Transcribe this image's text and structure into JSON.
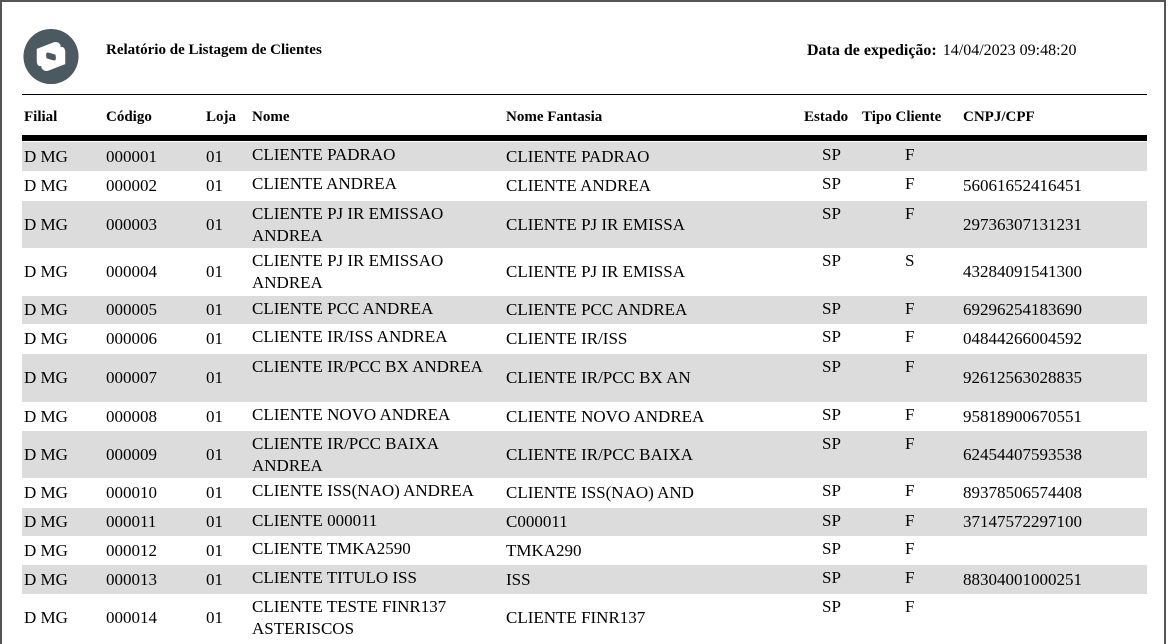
{
  "report": {
    "title": "Relatório de Listagem de Clientes",
    "date_label": "Data de expedição:",
    "date_value": "14/04/2023 09:48:20",
    "brand_color": "#4a5a60",
    "logo_icon": "totvs-logo"
  },
  "columns": [
    "Filial",
    "Código",
    "Loja",
    "Nome",
    "Nome Fantasia",
    "Estado",
    "Tipo Cliente",
    "CNPJ/CPF"
  ],
  "rows": [
    {
      "filial": "D MG",
      "codigo": "000001",
      "loja": "01",
      "nome": "CLIENTE PADRAO",
      "fantasia": "CLIENTE PADRAO",
      "estado": "SP",
      "tipo": "F",
      "cnpj": ""
    },
    {
      "filial": "D MG",
      "codigo": "000002",
      "loja": "01",
      "nome": "CLIENTE ANDREA",
      "fantasia": "CLIENTE ANDREA",
      "estado": "SP",
      "tipo": "F",
      "cnpj": "56061652416451"
    },
    {
      "filial": "D MG",
      "codigo": "000003",
      "loja": "01",
      "nome": "CLIENTE PJ IR EMISSAO ANDREA",
      "fantasia": "CLIENTE PJ IR EMISSA",
      "estado": "SP",
      "tipo": "F",
      "cnpj": "29736307131231"
    },
    {
      "filial": "D MG",
      "codigo": "000004",
      "loja": "01",
      "nome": "CLIENTE PJ IR EMISSAO ANDREA",
      "fantasia": "CLIENTE PJ IR EMISSA",
      "estado": "SP",
      "tipo": "S",
      "cnpj": "43284091541300"
    },
    {
      "filial": "D MG",
      "codigo": "000005",
      "loja": "01",
      "nome": "CLIENTE PCC ANDREA",
      "fantasia": "CLIENTE PCC ANDREA",
      "estado": "SP",
      "tipo": "F",
      "cnpj": "69296254183690"
    },
    {
      "filial": "D MG",
      "codigo": "000006",
      "loja": "01",
      "nome": "CLIENTE IR/ISS ANDREA",
      "fantasia": "CLIENTE IR/ISS",
      "estado": "SP",
      "tipo": "F",
      "cnpj": "04844266004592"
    },
    {
      "filial": "D MG",
      "codigo": "000007",
      "loja": "01",
      "nome": "CLIENTE IR/PCC BX ANDREA",
      "fantasia": "CLIENTE IR/PCC BX AN",
      "estado": "SP",
      "tipo": "F",
      "cnpj": "92612563028835"
    },
    {
      "filial": "D MG",
      "codigo": "000008",
      "loja": "01",
      "nome": "CLIENTE NOVO ANDREA",
      "fantasia": "CLIENTE NOVO ANDREA",
      "estado": "SP",
      "tipo": "F",
      "cnpj": "95818900670551"
    },
    {
      "filial": "D MG",
      "codigo": "000009",
      "loja": "01",
      "nome": "CLIENTE IR/PCC BAIXA ANDREA",
      "fantasia": "CLIENTE IR/PCC BAIXA",
      "estado": "SP",
      "tipo": "F",
      "cnpj": "62454407593538"
    },
    {
      "filial": "D MG",
      "codigo": "000010",
      "loja": "01",
      "nome": "CLIENTE ISS(NAO) ANDREA",
      "fantasia": "CLIENTE ISS(NAO) AND",
      "estado": "SP",
      "tipo": "F",
      "cnpj": "89378506574408"
    },
    {
      "filial": "D MG",
      "codigo": "000011",
      "loja": "01",
      "nome": "CLIENTE 000011",
      "fantasia": "C000011",
      "estado": "SP",
      "tipo": "F",
      "cnpj": "37147572297100"
    },
    {
      "filial": "D MG",
      "codigo": "000012",
      "loja": "01",
      "nome": "CLIENTE TMKA2590",
      "fantasia": "TMKA290",
      "estado": "SP",
      "tipo": "F",
      "cnpj": ""
    },
    {
      "filial": "D MG",
      "codigo": "000013",
      "loja": "01",
      "nome": "CLIENTE TITULO ISS",
      "fantasia": "ISS",
      "estado": "SP",
      "tipo": "F",
      "cnpj": "88304001000251"
    },
    {
      "filial": "D MG",
      "codigo": "000014",
      "loja": "01",
      "nome": "CLIENTE TESTE FINR137 ASTERISCOS",
      "fantasia": "CLIENTE FINR137",
      "estado": "SP",
      "tipo": "F",
      "cnpj": ""
    }
  ]
}
